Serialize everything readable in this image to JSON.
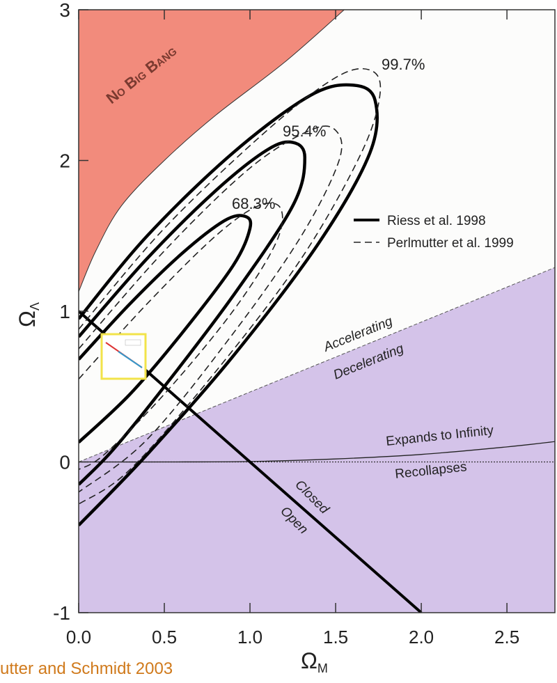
{
  "chart_data": {
    "type": "contour",
    "xlabel": "Ω",
    "xlabel_sub": "M",
    "ylabel": "Ω",
    "ylabel_sub": "Λ",
    "xlim": [
      0,
      2.78
    ],
    "ylim": [
      -1,
      3
    ],
    "xticks": [
      {
        "value": 0,
        "label": "0.0"
      },
      {
        "value": 0.5,
        "label": "0.5"
      },
      {
        "value": 1,
        "label": "1.0"
      },
      {
        "value": 1.5,
        "label": "1.5"
      },
      {
        "value": 2,
        "label": "2.0"
      },
      {
        "value": 2.5,
        "label": "2.5"
      }
    ],
    "yticks": [
      -1,
      0,
      1,
      2,
      3
    ],
    "series": [
      {
        "name": "Riess et al. 1998",
        "color": "#000000",
        "dash": false,
        "contours": [
          {
            "x": [
              0,
              0.3,
              0.6,
              0.85,
              0.97,
              1.0,
              0.9,
              0.6,
              0.3,
              0
            ],
            "y": [
              0.68,
              1.05,
              1.38,
              1.6,
              1.63,
              1.55,
              1.3,
              0.85,
              0.45,
              0.13
            ]
          },
          {
            "x": [
              0,
              0.4,
              0.8,
              1.1,
              1.25,
              1.32,
              1.25,
              0.9,
              0.5,
              0.2,
              0
            ],
            "y": [
              0.83,
              1.35,
              1.8,
              2.07,
              2.12,
              2.02,
              1.7,
              1.1,
              0.5,
              0.08,
              -0.15
            ]
          },
          {
            "x": [
              0,
              0.4,
              0.9,
              1.35,
              1.6,
              1.73,
              1.7,
              1.4,
              0.9,
              0.4,
              0
            ],
            "y": [
              0.95,
              1.5,
              2.05,
              2.43,
              2.5,
              2.4,
              2.05,
              1.45,
              0.7,
              0.05,
              -0.42
            ]
          }
        ]
      },
      {
        "name": "Perlmutter et al. 1999",
        "color": "#222222",
        "dash": true,
        "contours": [
          {
            "x": [
              0,
              0.4,
              0.8,
              1.05,
              1.18,
              1.15,
              0.9,
              0.5,
              0.15,
              0
            ],
            "y": [
              0.55,
              1.05,
              1.5,
              1.7,
              1.68,
              1.45,
              1.0,
              0.45,
              0.05,
              -0.05
            ]
          },
          {
            "x": [
              0,
              0.5,
              1.0,
              1.35,
              1.5,
              1.52,
              1.3,
              0.9,
              0.4,
              0
            ],
            "y": [
              0.75,
              1.4,
              1.95,
              2.2,
              2.2,
              2.0,
              1.5,
              0.85,
              0.15,
              -0.2
            ]
          },
          {
            "x": [
              0,
              0.5,
              1.1,
              1.5,
              1.7,
              1.76,
              1.65,
              1.3,
              0.8,
              0.3,
              0
            ],
            "y": [
              0.88,
              1.55,
              2.2,
              2.55,
              2.6,
              2.45,
              2.05,
              1.35,
              0.6,
              -0.05,
              -0.28
            ]
          }
        ]
      }
    ],
    "confidence_labels": [
      "68.3%",
      "95.4%",
      "99.7%"
    ],
    "no_big_bang": {
      "label": "No Big Bang",
      "color": "#f28b7c",
      "x": [
        0,
        0.1,
        0.25,
        0.5,
        0.8,
        1.2,
        1.55
      ],
      "y": [
        1.13,
        1.4,
        1.7,
        2.0,
        2.3,
        2.65,
        3.0
      ]
    },
    "acceleration_line": {
      "labels": [
        "Accelerating",
        "Decelerating"
      ],
      "color": "#d4c3e9",
      "x": [
        0,
        2.78
      ],
      "y": [
        0,
        1.29
      ]
    },
    "expansion_curve": {
      "labels": [
        "Expands to Infinity",
        "Recollapses"
      ],
      "x": [
        0,
        0.5,
        1,
        1.5,
        2,
        2.5,
        2.78
      ],
      "y": [
        0,
        0,
        0.003,
        0.02,
        0.05,
        0.1,
        0.135
      ]
    },
    "curvature_line": {
      "labels": [
        "Closed",
        "Open"
      ],
      "x": [
        0,
        2
      ],
      "y": [
        1,
        -1
      ]
    }
  },
  "caption": "utter and Schmidt 2003"
}
